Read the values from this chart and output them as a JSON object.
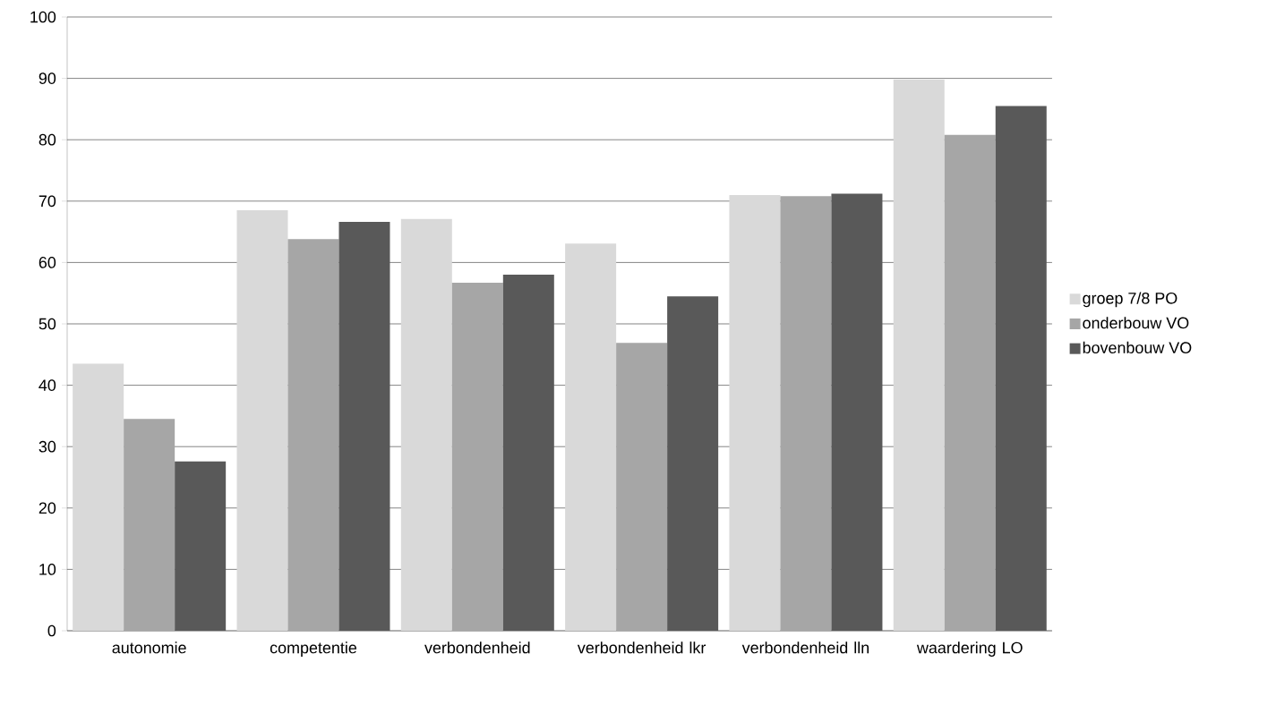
{
  "chart_data": {
    "type": "bar",
    "categories": [
      "autonomie",
      "competentie",
      "verbondenheid",
      "verbondenheid lkr",
      "verbondenheid lln",
      "waardering LO"
    ],
    "series": [
      {
        "name": "groep 7/8 PO",
        "color": "#d9d9d9",
        "values": [
          43.5,
          68.5,
          67.1,
          63.1,
          71.0,
          89.8
        ]
      },
      {
        "name": "onderbouw VO",
        "color": "#a6a6a6",
        "values": [
          34.5,
          63.8,
          56.7,
          46.9,
          70.8,
          80.8
        ]
      },
      {
        "name": "bovenbouw VO",
        "color": "#595959",
        "values": [
          27.6,
          66.6,
          58.0,
          54.5,
          71.2,
          85.5
        ]
      }
    ],
    "ylim": [
      0,
      100
    ],
    "yticks": [
      0,
      10,
      20,
      30,
      40,
      50,
      60,
      70,
      80,
      90,
      100
    ],
    "grid": "y",
    "legend": "right"
  }
}
